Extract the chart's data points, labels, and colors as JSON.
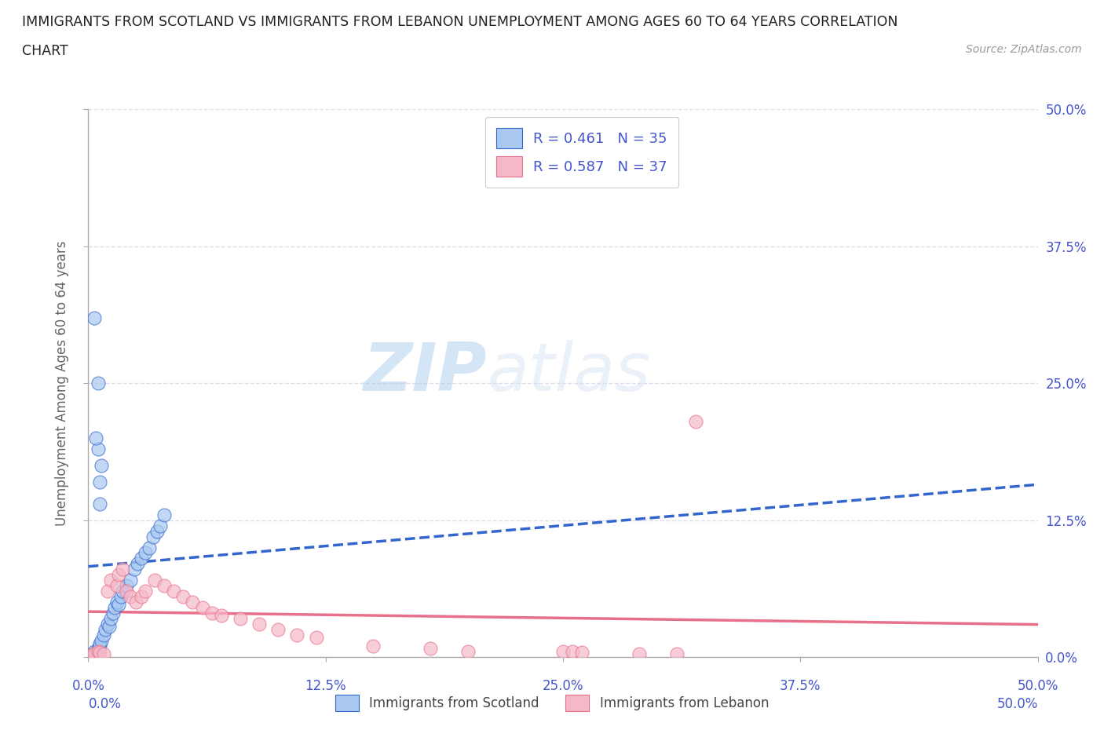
{
  "title_line1": "IMMIGRANTS FROM SCOTLAND VS IMMIGRANTS FROM LEBANON UNEMPLOYMENT AMONG AGES 60 TO 64 YEARS CORRELATION",
  "title_line2": "CHART",
  "source_text": "Source: ZipAtlas.com",
  "xlabel_bottom": "Immigrants from Scotland",
  "xlabel_bottom2": "Immigrants from Lebanon",
  "ylabel": "Unemployment Among Ages 60 to 64 years",
  "xlim": [
    0.0,
    0.5
  ],
  "ylim": [
    0.0,
    0.5
  ],
  "xticks": [
    0.0,
    0.125,
    0.25,
    0.375,
    0.5
  ],
  "yticks": [
    0.0,
    0.125,
    0.25,
    0.375,
    0.5
  ],
  "xticklabels": [
    "0.0%",
    "12.5%",
    "25.0%",
    "37.5%",
    "50.0%"
  ],
  "yticklabels": [
    "0.0%",
    "12.5%",
    "25.0%",
    "37.5%",
    "50.0%"
  ],
  "scotland_color": "#a8c8f0",
  "lebanon_color": "#f5b8c8",
  "scotland_line_color": "#3366cc",
  "lebanon_line_color": "#e8708a",
  "r_scotland": 0.461,
  "n_scotland": 35,
  "r_lebanon": 0.587,
  "n_lebanon": 37,
  "watermark_zip": "ZIP",
  "watermark_atlas": "atlas",
  "background_color": "#ffffff",
  "grid_color": "#ddddee",
  "tick_color": "#4455cc",
  "title_color": "#222222",
  "scotland_points_x": [
    0.003,
    0.004,
    0.005,
    0.006,
    0.006,
    0.007,
    0.008,
    0.009,
    0.01,
    0.011,
    0.012,
    0.013,
    0.014,
    0.015,
    0.016,
    0.017,
    0.018,
    0.02,
    0.022,
    0.024,
    0.026,
    0.028,
    0.03,
    0.032,
    0.034,
    0.036,
    0.038,
    0.04,
    0.005,
    0.004,
    0.005,
    0.006,
    0.003,
    0.007,
    0.006
  ],
  "scotland_points_y": [
    0.005,
    0.003,
    0.008,
    0.01,
    0.012,
    0.015,
    0.02,
    0.025,
    0.03,
    0.028,
    0.035,
    0.04,
    0.045,
    0.05,
    0.048,
    0.055,
    0.06,
    0.065,
    0.07,
    0.08,
    0.085,
    0.09,
    0.095,
    0.1,
    0.11,
    0.115,
    0.12,
    0.13,
    0.19,
    0.2,
    0.25,
    0.16,
    0.31,
    0.175,
    0.14
  ],
  "lebanon_points_x": [
    0.002,
    0.003,
    0.005,
    0.006,
    0.008,
    0.01,
    0.012,
    0.015,
    0.016,
    0.018,
    0.02,
    0.022,
    0.025,
    0.028,
    0.03,
    0.035,
    0.04,
    0.045,
    0.05,
    0.055,
    0.06,
    0.065,
    0.07,
    0.08,
    0.09,
    0.1,
    0.11,
    0.12,
    0.15,
    0.18,
    0.2,
    0.25,
    0.255,
    0.26,
    0.29,
    0.31,
    0.32
  ],
  "lebanon_points_y": [
    0.002,
    0.003,
    0.005,
    0.004,
    0.003,
    0.06,
    0.07,
    0.065,
    0.075,
    0.08,
    0.06,
    0.055,
    0.05,
    0.055,
    0.06,
    0.07,
    0.065,
    0.06,
    0.055,
    0.05,
    0.045,
    0.04,
    0.038,
    0.035,
    0.03,
    0.025,
    0.02,
    0.018,
    0.01,
    0.008,
    0.005,
    0.005,
    0.005,
    0.004,
    0.003,
    0.003,
    0.215
  ]
}
